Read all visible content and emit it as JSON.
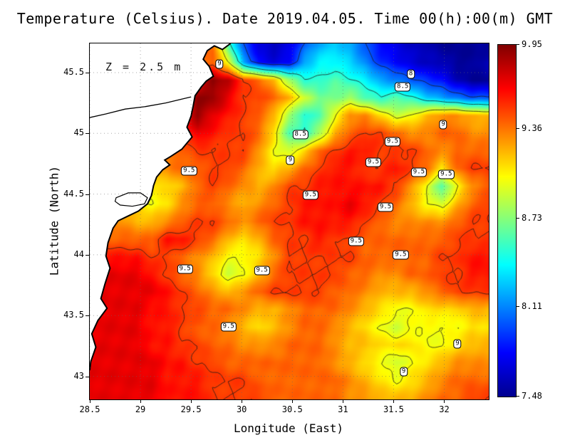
{
  "title": "Temperature (Celsius). Date 2019.04.05. Time 00(h):00(m) GMT",
  "annotation": "Z = 2.5 m",
  "axes": {
    "x_label": "Longitude (East)",
    "y_label": "Latitude (North)",
    "x_ticks": [
      28.5,
      29,
      29.5,
      30,
      30.5,
      31,
      31.5,
      32
    ],
    "x_tick_labels": [
      "28.5",
      "29",
      "29.5",
      "30",
      "30.5",
      "31",
      "31.5",
      "32"
    ],
    "y_ticks": [
      43,
      43.5,
      44,
      44.5,
      45,
      45.5
    ],
    "y_tick_labels": [
      "43",
      "43.5",
      "44",
      "44.5",
      "45",
      "45.5"
    ]
  },
  "colorbar": {
    "min": 7.48,
    "max": 9.95,
    "tick_labels": [
      "9.95",
      "9.36",
      "8.73",
      "8.11",
      "7.48"
    ]
  },
  "colors": {
    "land": "#ffffff",
    "coastline": "#000000",
    "contour": "#1a1a1a",
    "gridline": "#666666"
  },
  "chart_data": {
    "type": "heatmap",
    "variable": "Temperature (Celsius)",
    "depth_annotation": "Z = 2.5 m",
    "zmin": 7.48,
    "zmax": 9.95,
    "lon_range": [
      28.5,
      32.44
    ],
    "lat_range": [
      42.81,
      45.74
    ],
    "contour_levels": [
      8,
      8.5,
      9,
      9.5
    ],
    "colormap": {
      "pos": [
        0,
        0.125,
        0.375,
        0.625,
        0.875,
        1
      ],
      "colors": [
        "#00008f",
        "#0000ff",
        "#00ffff",
        "#ffff00",
        "#ff0000",
        "#800000"
      ]
    },
    "values": [
      [
        9.4,
        9.4,
        9.4,
        9.4,
        9.4,
        9.4,
        9.4,
        9.4,
        9.4,
        8.6,
        8.0,
        7.7,
        7.6,
        7.7,
        8.0,
        8.2,
        8.3,
        8.2,
        8.0,
        7.8,
        7.7,
        7.6,
        7.6,
        7.5,
        7.5,
        7.5,
        7.5
      ],
      [
        9.4,
        9.4,
        9.4,
        9.4,
        9.4,
        9.4,
        9.4,
        9.4,
        9.4,
        9.0,
        8.2,
        7.8,
        7.7,
        7.8,
        8.2,
        8.4,
        8.4,
        8.3,
        8.1,
        7.9,
        7.8,
        7.7,
        7.6,
        7.6,
        7.5,
        7.5,
        7.6
      ],
      [
        9.6,
        9.6,
        9.6,
        9.6,
        9.6,
        9.6,
        9.6,
        9.7,
        9.9,
        9.8,
        9.5,
        9.4,
        9.2,
        8.8,
        8.5,
        8.5,
        8.6,
        8.5,
        8.4,
        8.2,
        8.1,
        8.0,
        7.9,
        7.8,
        7.6,
        7.5,
        7.5
      ],
      [
        9.7,
        9.7,
        9.7,
        9.7,
        9.7,
        9.7,
        9.7,
        9.9,
        9.9,
        9.7,
        9.5,
        9.5,
        9.4,
        9.2,
        8.9,
        8.7,
        8.7,
        8.8,
        8.6,
        8.5,
        8.6,
        8.5,
        8.3,
        8.2,
        8.1,
        8.0,
        8.0
      ],
      [
        9.6,
        9.6,
        9.6,
        9.6,
        9.6,
        9.6,
        9.6,
        9.9,
        9.7,
        9.6,
        9.5,
        9.4,
        9.2,
        8.8,
        8.5,
        8.6,
        9.0,
        9.3,
        9.3,
        9.1,
        8.9,
        9.0,
        9.2,
        9.3,
        9.3,
        9.2,
        9.2
      ],
      [
        9.5,
        9.5,
        9.5,
        9.5,
        9.5,
        9.5,
        9.5,
        9.7,
        9.6,
        9.5,
        9.5,
        9.4,
        9.1,
        8.6,
        8.5,
        8.8,
        9.2,
        9.4,
        9.5,
        9.5,
        9.4,
        9.3,
        9.3,
        9.4,
        9.4,
        9.3,
        9.3
      ],
      [
        9.4,
        9.4,
        9.4,
        9.4,
        9.4,
        9.4,
        9.4,
        9.5,
        9.5,
        9.5,
        9.5,
        9.3,
        9.0,
        8.9,
        9.1,
        9.4,
        9.5,
        9.6,
        9.6,
        9.5,
        9.5,
        9.5,
        9.4,
        9.3,
        9.4,
        9.4,
        9.4
      ],
      [
        9.3,
        9.3,
        9.3,
        9.3,
        9.3,
        9.3,
        9.4,
        9.4,
        9.5,
        9.5,
        9.4,
        9.2,
        9.1,
        9.2,
        9.4,
        9.5,
        9.6,
        9.6,
        9.5,
        9.5,
        9.6,
        9.5,
        9.4,
        9.1,
        9.4,
        9.5,
        9.5
      ],
      [
        9.2,
        9.2,
        9.2,
        9.2,
        9.1,
        9.1,
        9.2,
        9.4,
        9.5,
        9.4,
        9.3,
        9.2,
        9.3,
        9.5,
        9.5,
        9.6,
        9.6,
        9.6,
        9.6,
        9.6,
        9.5,
        9.3,
        9.0,
        8.6,
        9.0,
        9.3,
        9.4
      ],
      [
        9.2,
        9.2,
        9.2,
        9.1,
        9.0,
        9.1,
        9.3,
        9.4,
        9.4,
        9.3,
        9.2,
        9.3,
        9.4,
        9.5,
        9.6,
        9.6,
        9.6,
        9.7,
        9.6,
        9.5,
        9.4,
        9.2,
        9.0,
        8.9,
        9.2,
        9.4,
        9.5
      ],
      [
        9.3,
        9.3,
        9.3,
        9.2,
        9.2,
        9.3,
        9.4,
        9.5,
        9.5,
        9.4,
        9.3,
        9.4,
        9.5,
        9.5,
        9.6,
        9.6,
        9.6,
        9.6,
        9.5,
        9.4,
        9.3,
        9.3,
        9.3,
        9.3,
        9.4,
        9.5,
        9.5
      ],
      [
        9.4,
        9.4,
        9.4,
        9.4,
        9.4,
        9.6,
        9.6,
        9.5,
        9.4,
        9.2,
        9.1,
        9.2,
        9.4,
        9.5,
        9.5,
        9.6,
        9.5,
        9.5,
        9.4,
        9.4,
        9.4,
        9.4,
        9.4,
        9.4,
        9.5,
        9.5,
        9.5
      ],
      [
        9.6,
        9.6,
        9.6,
        9.6,
        9.5,
        9.5,
        9.4,
        9.3,
        9.2,
        9.0,
        9.0,
        9.1,
        9.3,
        9.5,
        9.5,
        9.5,
        9.5,
        9.5,
        9.4,
        9.4,
        9.4,
        9.4,
        9.4,
        9.5,
        9.5,
        9.6,
        9.6
      ],
      [
        9.7,
        9.7,
        9.7,
        9.7,
        9.6,
        9.5,
        9.4,
        9.3,
        9.1,
        8.9,
        9.0,
        9.2,
        9.4,
        9.5,
        9.5,
        9.5,
        9.5,
        9.4,
        9.4,
        9.3,
        9.3,
        9.4,
        9.4,
        9.5,
        9.5,
        9.6,
        9.6
      ],
      [
        9.7,
        9.7,
        9.7,
        9.7,
        9.7,
        9.6,
        9.5,
        9.4,
        9.3,
        9.2,
        9.3,
        9.4,
        9.5,
        9.5,
        9.5,
        9.5,
        9.4,
        9.4,
        9.3,
        9.2,
        9.2,
        9.2,
        9.3,
        9.4,
        9.5,
        9.5,
        9.5
      ],
      [
        9.7,
        9.7,
        9.7,
        9.7,
        9.6,
        9.6,
        9.5,
        9.5,
        9.4,
        9.4,
        9.3,
        9.2,
        9.2,
        9.3,
        9.4,
        9.4,
        9.4,
        9.3,
        9.2,
        9.1,
        9.0,
        9.0,
        9.1,
        9.1,
        9.1,
        9.2,
        9.2
      ],
      [
        9.7,
        9.7,
        9.7,
        9.7,
        9.6,
        9.6,
        9.5,
        9.4,
        9.4,
        9.3,
        9.2,
        9.1,
        9.2,
        9.3,
        9.4,
        9.4,
        9.3,
        9.2,
        9.1,
        9.0,
        8.9,
        9.0,
        9.0,
        9.0,
        9.0,
        9.1,
        9.1
      ],
      [
        9.7,
        9.7,
        9.7,
        9.7,
        9.6,
        9.6,
        9.5,
        9.5,
        9.4,
        9.4,
        9.3,
        9.3,
        9.3,
        9.4,
        9.4,
        9.4,
        9.3,
        9.2,
        9.2,
        9.1,
        9.1,
        9.1,
        9.0,
        9.0,
        9.1,
        9.2,
        9.2
      ],
      [
        9.7,
        9.7,
        9.7,
        9.7,
        9.7,
        9.6,
        9.6,
        9.5,
        9.5,
        9.4,
        9.4,
        9.4,
        9.4,
        9.4,
        9.4,
        9.4,
        9.3,
        9.2,
        9.1,
        9.0,
        8.9,
        9.0,
        9.1,
        9.2,
        9.3,
        9.3,
        9.3
      ],
      [
        9.7,
        9.7,
        9.7,
        9.7,
        9.7,
        9.6,
        9.6,
        9.6,
        9.5,
        9.5,
        9.5,
        9.4,
        9.4,
        9.4,
        9.4,
        9.4,
        9.4,
        9.3,
        9.2,
        9.1,
        9.0,
        9.1,
        9.2,
        9.3,
        9.4,
        9.4,
        9.4
      ],
      [
        9.7,
        9.7,
        9.7,
        9.7,
        9.7,
        9.6,
        9.6,
        9.6,
        9.5,
        9.5,
        9.5,
        9.5,
        9.4,
        9.4,
        9.4,
        9.4,
        9.4,
        9.3,
        9.3,
        9.2,
        9.2,
        9.2,
        9.3,
        9.4,
        9.4,
        9.5,
        9.5
      ]
    ],
    "contour_labels": [
      {
        "lon": 29.78,
        "lat": 45.57,
        "text": "9"
      },
      {
        "lon": 31.67,
        "lat": 45.49,
        "text": "8"
      },
      {
        "lon": 31.59,
        "lat": 45.38,
        "text": "8.5"
      },
      {
        "lon": 30.58,
        "lat": 44.99,
        "text": "8.5"
      },
      {
        "lon": 31.99,
        "lat": 45.07,
        "text": "9"
      },
      {
        "lon": 30.48,
        "lat": 44.78,
        "text": "9"
      },
      {
        "lon": 31.49,
        "lat": 44.93,
        "text": "9.5"
      },
      {
        "lon": 31.3,
        "lat": 44.76,
        "text": "9.5"
      },
      {
        "lon": 31.75,
        "lat": 44.68,
        "text": "9.5"
      },
      {
        "lon": 32.02,
        "lat": 44.66,
        "text": "9.5"
      },
      {
        "lon": 29.48,
        "lat": 44.69,
        "text": "9.5"
      },
      {
        "lon": 30.68,
        "lat": 44.49,
        "text": "9.5"
      },
      {
        "lon": 31.42,
        "lat": 44.39,
        "text": "9.5"
      },
      {
        "lon": 31.13,
        "lat": 44.11,
        "text": "9.5"
      },
      {
        "lon": 31.57,
        "lat": 44.0,
        "text": "9.5"
      },
      {
        "lon": 29.44,
        "lat": 43.88,
        "text": "9.5"
      },
      {
        "lon": 30.2,
        "lat": 43.87,
        "text": "9.5"
      },
      {
        "lon": 29.87,
        "lat": 43.41,
        "text": "9.5"
      },
      {
        "lon": 32.13,
        "lat": 43.27,
        "text": "9"
      },
      {
        "lon": 31.6,
        "lat": 43.04,
        "text": "9"
      }
    ],
    "coastline": [
      [
        29.89,
        45.74
      ],
      [
        29.81,
        45.69
      ],
      [
        29.73,
        45.72
      ],
      [
        29.66,
        45.68
      ],
      [
        29.62,
        45.61
      ],
      [
        29.68,
        45.55
      ],
      [
        29.72,
        45.47
      ],
      [
        29.65,
        45.43
      ],
      [
        29.6,
        45.38
      ],
      [
        29.54,
        45.31
      ],
      [
        29.52,
        45.22
      ],
      [
        29.5,
        45.14
      ],
      [
        29.46,
        45.05
      ],
      [
        29.51,
        44.97
      ],
      [
        29.45,
        44.91
      ],
      [
        29.41,
        44.87
      ],
      [
        29.3,
        44.81
      ],
      [
        29.24,
        44.78
      ],
      [
        29.29,
        44.74
      ],
      [
        29.22,
        44.7
      ],
      [
        29.16,
        44.64
      ],
      [
        29.13,
        44.57
      ],
      [
        29.11,
        44.49
      ],
      [
        29.07,
        44.42
      ],
      [
        28.98,
        44.36
      ],
      [
        28.88,
        44.32
      ],
      [
        28.78,
        44.28
      ],
      [
        28.73,
        44.22
      ],
      [
        28.68,
        44.1
      ],
      [
        28.66,
        43.99
      ],
      [
        28.7,
        43.89
      ],
      [
        28.65,
        43.76
      ],
      [
        28.61,
        43.64
      ],
      [
        28.67,
        43.56
      ],
      [
        28.58,
        43.46
      ],
      [
        28.52,
        43.35
      ],
      [
        28.56,
        43.24
      ],
      [
        28.51,
        43.12
      ],
      [
        28.5,
        43.05
      ]
    ],
    "river": [
      [
        28.5,
        45.13
      ],
      [
        28.66,
        45.16
      ],
      [
        28.85,
        45.2
      ],
      [
        29.05,
        45.22
      ],
      [
        29.25,
        45.25
      ],
      [
        29.4,
        45.28
      ],
      [
        29.5,
        45.3
      ]
    ],
    "lagoon": [
      [
        28.76,
        44.47
      ],
      [
        28.88,
        44.51
      ],
      [
        29.0,
        44.51
      ],
      [
        29.07,
        44.47
      ],
      [
        29.04,
        44.42
      ],
      [
        28.92,
        44.4
      ],
      [
        28.8,
        44.41
      ],
      [
        28.75,
        44.44
      ]
    ]
  }
}
